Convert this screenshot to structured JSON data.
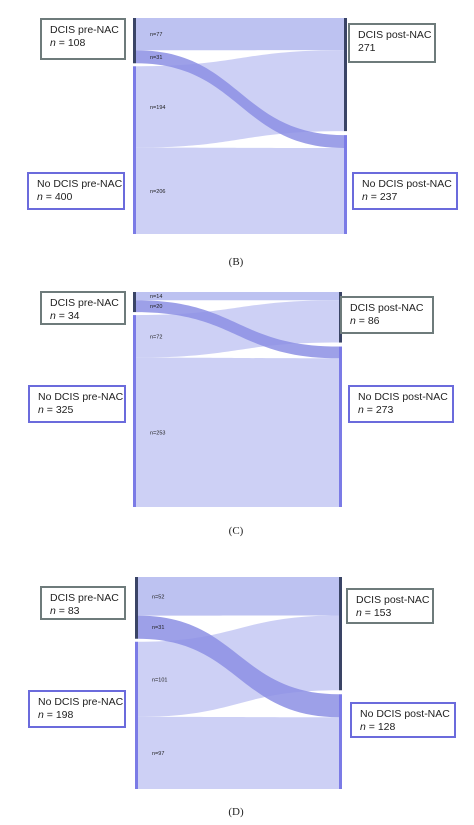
{
  "panels": [
    {
      "caption": "(B)",
      "pre_dcis": {
        "label": "DCIS pre-NAC",
        "n": "108"
      },
      "pre_no": {
        "label": "No DCIS pre-NAC",
        "n": "400"
      },
      "post_dcis": {
        "label": "DCIS post-NAC",
        "n": "271"
      },
      "post_no": {
        "label": "No DCIS post-NAC",
        "n": "237"
      },
      "flows": [
        {
          "from": "DCIS pre-NAC",
          "to": "DCIS post-NAC",
          "label": "n=77",
          "value": 77
        },
        {
          "from": "DCIS pre-NAC",
          "to": "No DCIS post-NAC",
          "label": "n=31",
          "value": 31
        },
        {
          "from": "No DCIS pre-NAC",
          "to": "DCIS post-NAC",
          "label": "n=194",
          "value": 194
        },
        {
          "from": "No DCIS pre-NAC",
          "to": "No DCIS post-NAC",
          "label": "n=206",
          "value": 206
        }
      ]
    },
    {
      "caption": "(C)",
      "pre_dcis": {
        "label": "DCIS pre-NAC",
        "n": "34"
      },
      "pre_no": {
        "label": "No DCIS pre-NAC",
        "n": "325"
      },
      "post_dcis": {
        "label": "DCIS post-NAC",
        "n": "86"
      },
      "post_no": {
        "label": "No DCIS post-NAC",
        "n": "273"
      },
      "flows": [
        {
          "from": "DCIS pre-NAC",
          "to": "DCIS post-NAC",
          "label": "n=14",
          "value": 14
        },
        {
          "from": "DCIS pre-NAC",
          "to": "No DCIS post-NAC",
          "label": "n=20",
          "value": 20
        },
        {
          "from": "No DCIS pre-NAC",
          "to": "DCIS post-NAC",
          "label": "n=72",
          "value": 72
        },
        {
          "from": "No DCIS pre-NAC",
          "to": "No DCIS post-NAC",
          "label": "n=253",
          "value": 253
        }
      ]
    },
    {
      "caption": "(D)",
      "pre_dcis": {
        "label": "DCIS pre-NAC",
        "n": "83"
      },
      "pre_no": {
        "label": "No DCIS pre-NAC",
        "n": "198"
      },
      "post_dcis": {
        "label": "DCIS post-NAC",
        "n": "153"
      },
      "post_no": {
        "label": "No DCIS post-NAC",
        "n": "128"
      },
      "flows": [
        {
          "from": "DCIS pre-NAC",
          "to": "DCIS post-NAC",
          "label": "n=52",
          "value": 52
        },
        {
          "from": "DCIS pre-NAC",
          "to": "No DCIS post-NAC",
          "label": "n=31",
          "value": 31
        },
        {
          "from": "No DCIS pre-NAC",
          "to": "DCIS post-NAC",
          "label": "n=101",
          "value": 101
        },
        {
          "from": "No DCIS pre-NAC",
          "to": "No DCIS post-NAC",
          "label": "n=97",
          "value": 97
        }
      ]
    }
  ],
  "n_prefix": "n",
  "n_separator": " = ",
  "colors": {
    "dcis_node": "#3a4466",
    "no_dcis_node": "#7b7be6",
    "flow_light": "#c8cbf4",
    "flow_mid": "#b6bbef",
    "flow_dark": "#8c8fe4",
    "box_gray": "#6e7b7b",
    "box_blue": "#6b6bdc"
  }
}
